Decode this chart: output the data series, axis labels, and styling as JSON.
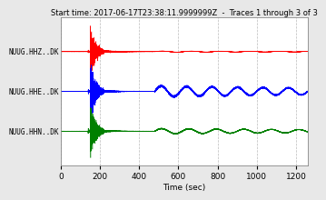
{
  "title": "Start time: 2017-06-17T23:38:11.9999999Z  -  Traces 1 through 3 of 3",
  "xlabel": "Time (sec)",
  "xlim": [
    0,
    1260
  ],
  "xticks": [
    0,
    200,
    400,
    600,
    800,
    1000,
    1200
  ],
  "trace_labels": [
    "NUUG.HHZ..DK",
    "NUUG.HHE..DK",
    "NUUG.HHN..DK"
  ],
  "trace_colors": [
    "red",
    "blue",
    "green"
  ],
  "background_color": "#e8e8e8",
  "plot_bg_color": "#ffffff",
  "title_fontsize": 6.0,
  "label_fontsize": 5.5,
  "tick_fontsize": 6.5,
  "duration": 1260,
  "sample_rate": 50,
  "earthquake_time": 150,
  "eq_burst_duration": 70,
  "sw_period_hhz": 150,
  "sw_period_hhe": 130,
  "sw_period_hhn": 140,
  "sw_amp_hhz": 0.06,
  "sw_amp_hhe": 0.45,
  "sw_amp_hhn": 0.2,
  "sw_start": 480,
  "trace_offsets": [
    1.5,
    0.0,
    -1.5
  ],
  "ylim": [
    -2.8,
    2.8
  ]
}
